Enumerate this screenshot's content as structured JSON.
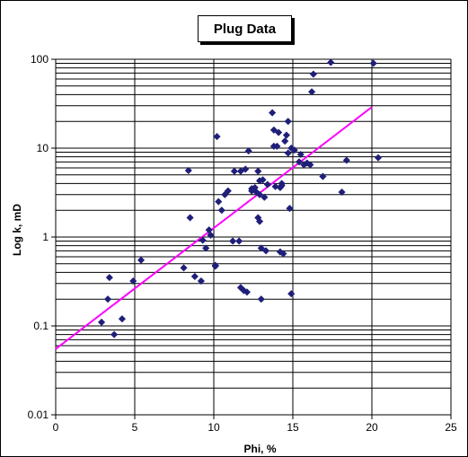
{
  "chart_data": {
    "type": "scatter",
    "title": "Plug Data",
    "xlabel": "Phi, %",
    "ylabel": "Log k, mD",
    "xlim": [
      0,
      25
    ],
    "ylim": [
      0.01,
      100
    ],
    "yscale": "log",
    "x_ticks": [
      "0",
      "5",
      "10",
      "15",
      "20",
      "25"
    ],
    "y_ticks": [
      "0.01",
      "0.1",
      "1",
      "10",
      "100"
    ],
    "grid": true,
    "legend": "none",
    "marker_color": "#1f1f7a",
    "series": [
      {
        "marker": "diamond",
        "x": [
          2.9,
          3.3,
          3.4,
          3.7,
          4.2,
          4.9,
          5.4,
          8.1,
          8.4,
          8.5,
          8.8,
          9.2,
          9.3,
          9.5,
          9.7,
          9.8,
          10.1,
          10.1,
          10.2,
          10.3,
          10.5,
          10.7,
          10.9,
          11.2,
          11.3,
          11.6,
          11.7,
          11.7,
          11.9,
          12.0,
          12.1,
          12.2,
          12.4,
          12.7,
          12.8,
          12.9,
          12.9,
          13.0,
          13.0,
          13.1,
          13.2,
          13.7,
          13.8,
          13.8,
          14.0,
          14.1,
          14.2,
          14.3,
          14.5,
          14.6,
          14.7,
          14.8,
          14.9,
          15.1,
          15.4,
          15.5,
          15.7,
          15.9,
          16.1,
          16.2,
          16.3,
          16.9,
          17.4,
          18.1,
          18.4,
          20.1,
          20.4,
          12.8,
          13.3,
          14.2,
          12.4,
          12.9,
          14.4,
          13.9,
          13.4,
          14.3,
          14.7,
          14.9,
          12.6
        ],
        "y": [
          0.11,
          0.2,
          0.35,
          0.08,
          0.12,
          0.32,
          0.55,
          0.45,
          5.6,
          1.65,
          0.36,
          0.32,
          0.92,
          0.75,
          1.2,
          1.05,
          0.48,
          0.47,
          13.5,
          2.5,
          2.0,
          3.0,
          3.3,
          0.9,
          5.5,
          0.9,
          5.5,
          0.27,
          0.25,
          5.8,
          0.24,
          9.3,
          3.3,
          3.2,
          5.5,
          4.3,
          3.0,
          0.75,
          0.2,
          4.4,
          2.8,
          25.0,
          10.5,
          16.0,
          10.5,
          15.0,
          3.6,
          3.8,
          12.0,
          14.0,
          20.0,
          2.1,
          10.0,
          9.5,
          7.0,
          8.5,
          6.5,
          6.8,
          6.5,
          43.0,
          68.0,
          4.8,
          92.0,
          3.2,
          7.3,
          90.0,
          7.8,
          1.65,
          0.7,
          0.68,
          3.5,
          1.5,
          0.65,
          3.7,
          3.9,
          4.0,
          8.8,
          0.23,
          3.6
        ]
      },
      {
        "type": "line",
        "color": "#ff00ff",
        "x": [
          0,
          20
        ],
        "y": [
          0.055,
          29.0
        ]
      }
    ]
  }
}
